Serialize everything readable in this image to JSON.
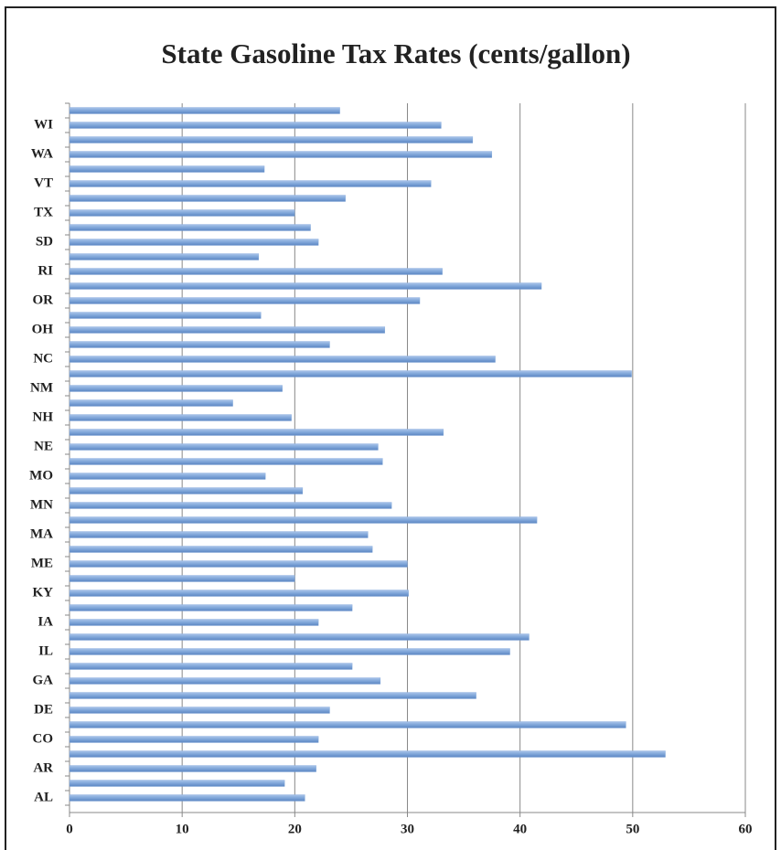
{
  "chart_data": {
    "type": "bar",
    "orientation": "horizontal",
    "title": "State Gasoline Tax Rates (cents/gallon)",
    "categories": [
      "AL",
      null,
      "AR",
      null,
      "CO",
      null,
      "DE",
      null,
      "GA",
      null,
      "IL",
      null,
      "IA",
      null,
      "KY",
      null,
      "ME",
      null,
      "MA",
      null,
      "MN",
      null,
      "MO",
      null,
      "NE",
      null,
      "NH",
      null,
      "NM",
      null,
      "NC",
      null,
      "OH",
      null,
      "OR",
      null,
      "RI",
      null,
      "SD",
      null,
      "TX",
      null,
      "VT",
      null,
      "WA",
      null,
      "WI",
      null
    ],
    "values": [
      20.9,
      19.1,
      21.9,
      52.9,
      22.1,
      49.4,
      23.1,
      36.1,
      27.6,
      25.1,
      39.1,
      40.8,
      22.1,
      25.1,
      30.1,
      20.0,
      30.0,
      26.9,
      26.5,
      41.5,
      28.6,
      20.7,
      17.4,
      27.8,
      27.4,
      33.2,
      19.7,
      14.5,
      18.9,
      49.9,
      37.8,
      23.1,
      28.0,
      17.0,
      31.1,
      41.9,
      33.1,
      16.8,
      22.1,
      21.4,
      20.0,
      24.5,
      32.1,
      17.3,
      37.5,
      35.8,
      33.0,
      24.0
    ],
    "color": "#7fa6d9",
    "xlim": [
      0,
      60
    ],
    "xticks": [
      0,
      10,
      20,
      30,
      40,
      50,
      60
    ],
    "grid": true
  }
}
